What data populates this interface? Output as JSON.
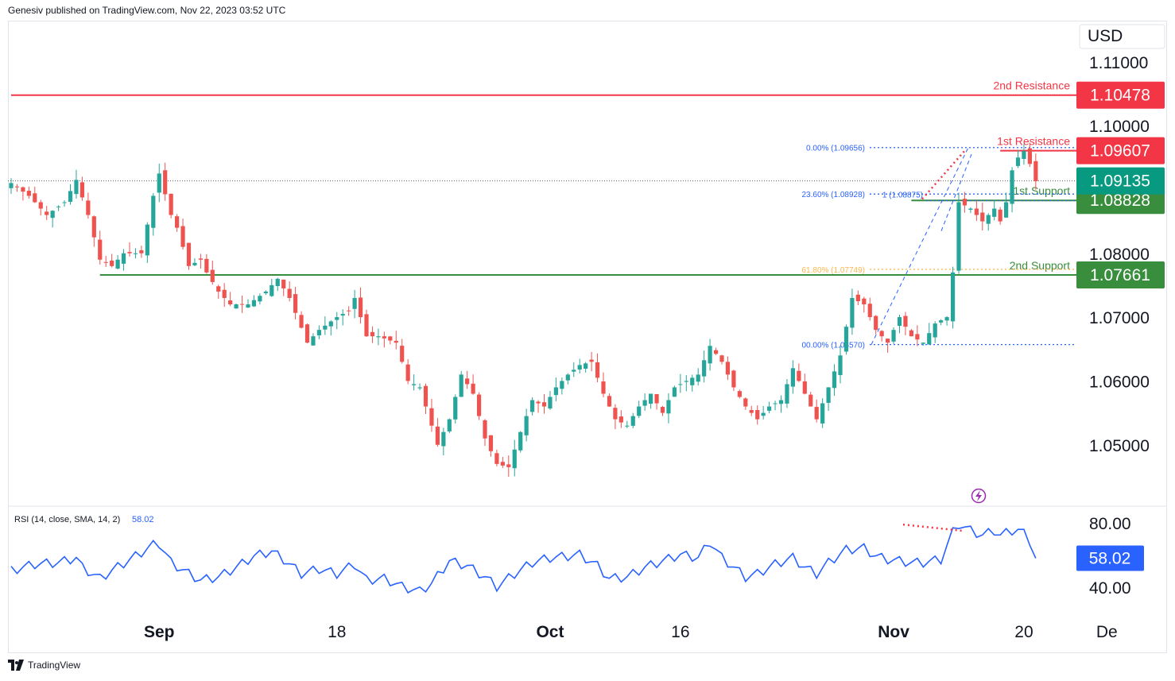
{
  "header": {
    "publisher": "Genesiv published on TradingView.com, Nov 22, 2023 03:52 UTC"
  },
  "footer": {
    "brand": "TradingView"
  },
  "colors": {
    "up": "#26a69a",
    "down": "#ef5350",
    "resistance": "#f23645",
    "support": "#388e3c",
    "fib": "#2962ff",
    "fib_golden": "#ffb74d",
    "rsi": "#2962ff",
    "divergence": "#f23645",
    "last_price_bg": "#089981",
    "axis_text": "#131722"
  },
  "chart_data": [
    {
      "type": "candlestick",
      "title": "",
      "currency": "USD",
      "ylim": [
        1.0425,
        1.1147
      ],
      "y_ticks": [
        "1.11000",
        "1.10000",
        "1.08000",
        "1.07000",
        "1.06000",
        "1.05000"
      ],
      "x_ticks": [
        "Sep",
        "18",
        "Oct",
        "16",
        "Nov",
        "20",
        "Dec"
      ],
      "x_tick_display": [
        "Sep",
        "18",
        "Oct",
        "16",
        "Nov",
        "20",
        "De"
      ],
      "x_tick_bar_index": [
        25,
        55,
        91,
        113,
        149,
        171,
        185
      ],
      "bar_count": 186,
      "last_price": 1.09135,
      "levels": [
        {
          "name": "2nd Resistance",
          "label": "2nd Resistance",
          "value": 1.10478,
          "value_label": "1.10478",
          "kind": "resistance",
          "from_bar": 0
        },
        {
          "name": "1st Resistance",
          "label": "1st Resistance",
          "value": 1.09607,
          "value_label": "1.09607",
          "kind": "resistance",
          "from_bar": 167
        },
        {
          "name": "1st Support",
          "label": "1st Support",
          "value": 1.08828,
          "value_label": "1.08828",
          "kind": "support",
          "from_bar": 152
        },
        {
          "name": "2nd Support",
          "label": "2nd Support",
          "value": 1.07661,
          "value_label": "1.07661",
          "kind": "support",
          "from_bar": 15
        }
      ],
      "last_price_label": "1.09135",
      "fibonacci": [
        {
          "label": "0.00% (1.09656)",
          "value": 1.09656
        },
        {
          "label": "23.60% (1.08928)",
          "value": 1.08928
        },
        {
          "label": "61.80% (1.07749)",
          "value": 1.07749
        },
        {
          "label": "00.00% (1.06570)",
          "value": 1.0657
        }
      ],
      "extension_label": "1 (1.08875)",
      "extension_value": 1.08875,
      "close_path": [
        [
          0,
          1.091
        ],
        [
          3,
          1.089
        ],
        [
          6,
          1.086
        ],
        [
          9,
          1.088
        ],
        [
          11,
          1.0915
        ],
        [
          13,
          1.086
        ],
        [
          15,
          1.079
        ],
        [
          17,
          1.078
        ],
        [
          19,
          1.08
        ],
        [
          22,
          1.08
        ],
        [
          24,
          1.089
        ],
        [
          25,
          1.0925
        ],
        [
          27,
          1.086
        ],
        [
          28,
          1.084
        ],
        [
          30,
          1.078
        ],
        [
          32,
          1.079
        ],
        [
          33,
          1.077
        ],
        [
          35,
          1.074
        ],
        [
          37,
          1.072
        ],
        [
          40,
          1.072
        ],
        [
          43,
          1.074
        ],
        [
          45,
          1.076
        ],
        [
          47,
          1.073
        ],
        [
          50,
          1.066
        ],
        [
          52,
          1.068
        ],
        [
          55,
          1.07
        ],
        [
          57,
          1.071
        ],
        [
          58,
          1.073
        ],
        [
          60,
          1.067
        ],
        [
          62,
          1.067
        ],
        [
          65,
          1.066
        ],
        [
          67,
          1.06
        ],
        [
          69,
          1.059
        ],
        [
          72,
          1.05
        ],
        [
          74,
          1.054
        ],
        [
          76,
          1.061
        ],
        [
          78,
          1.058
        ],
        [
          80,
          1.051
        ],
        [
          82,
          1.047
        ],
        [
          84,
          1.0465
        ],
        [
          86,
          1.052
        ],
        [
          88,
          1.057
        ],
        [
          90,
          1.056
        ],
        [
          92,
          1.059
        ],
        [
          94,
          1.061
        ],
        [
          96,
          1.0625
        ],
        [
          98,
          1.063
        ],
        [
          100,
          1.058
        ],
        [
          102,
          1.054
        ],
        [
          104,
          1.053
        ],
        [
          106,
          1.056
        ],
        [
          108,
          1.058
        ],
        [
          110,
          1.055
        ],
        [
          112,
          1.059
        ],
        [
          114,
          1.06
        ],
        [
          116,
          1.061
        ],
        [
          118,
          1.0655
        ],
        [
          120,
          1.063
        ],
        [
          122,
          1.059
        ],
        [
          124,
          1.056
        ],
        [
          126,
          1.054
        ],
        [
          128,
          1.056
        ],
        [
          130,
          1.057
        ],
        [
          132,
          1.062
        ],
        [
          134,
          1.058
        ],
        [
          136,
          1.054
        ],
        [
          138,
          1.059
        ],
        [
          140,
          1.064
        ],
        [
          142,
          1.073
        ],
        [
          144,
          1.072
        ],
        [
          146,
          1.068
        ],
        [
          148,
          1.066
        ],
        [
          150,
          1.07
        ],
        [
          152,
          1.067
        ],
        [
          154,
          1.066
        ],
        [
          156,
          1.069
        ],
        [
          158,
          1.07
        ],
        [
          159,
          1.077
        ],
        [
          160,
          1.088
        ],
        [
          162,
          1.087
        ],
        [
          164,
          1.085
        ],
        [
          166,
          1.087
        ],
        [
          167,
          1.085
        ],
        [
          168,
          1.088
        ],
        [
          169,
          1.093
        ],
        [
          170,
          1.095
        ],
        [
          171,
          1.096
        ],
        [
          172,
          1.094
        ],
        [
          173,
          1.0913
        ]
      ]
    },
    {
      "type": "line",
      "title": "RSI (14, close, SMA, 14, 2)",
      "legend_label": "RSI (14, close, SMA, 14, 2)",
      "legend_value": "58.02",
      "ylim": [
        28.5,
        88
      ],
      "y_ticks": [
        "80.00",
        "40.00"
      ],
      "last_value": 58.02,
      "last_value_label": "58.02",
      "series": [
        {
          "name": "RSI",
          "path": [
            [
              0,
              50
            ],
            [
              4,
              54
            ],
            [
              8,
              55
            ],
            [
              11,
              58
            ],
            [
              12,
              52
            ],
            [
              15,
              45
            ],
            [
              17,
              50
            ],
            [
              21,
              59
            ],
            [
              24,
              66
            ],
            [
              25,
              67
            ],
            [
              27,
              55
            ],
            [
              30,
              48
            ],
            [
              32,
              44
            ],
            [
              35,
              46
            ],
            [
              38,
              52
            ],
            [
              41,
              59
            ],
            [
              44,
              62
            ],
            [
              46,
              57
            ],
            [
              49,
              48
            ],
            [
              52,
              51
            ],
            [
              55,
              48
            ],
            [
              58,
              54
            ],
            [
              60,
              44
            ],
            [
              63,
              45
            ],
            [
              66,
              40
            ],
            [
              69,
              37
            ],
            [
              71,
              42
            ],
            [
              74,
              56
            ],
            [
              77,
              53
            ],
            [
              80,
              46
            ],
            [
              82,
              40
            ],
            [
              85,
              48
            ],
            [
              88,
              55
            ],
            [
              91,
              58
            ],
            [
              94,
              59
            ],
            [
              96,
              60
            ],
            [
              99,
              53
            ],
            [
              101,
              45
            ],
            [
              104,
              46
            ],
            [
              107,
              52
            ],
            [
              110,
              56
            ],
            [
              113,
              60
            ],
            [
              116,
              58
            ],
            [
              118,
              68
            ],
            [
              120,
              58
            ],
            [
              122,
              52
            ],
            [
              124,
              46
            ],
            [
              126,
              48
            ],
            [
              129,
              54
            ],
            [
              132,
              58
            ],
            [
              134,
              52
            ],
            [
              136,
              48
            ],
            [
              138,
              55
            ],
            [
              141,
              63
            ],
            [
              144,
              64
            ],
            [
              146,
              59
            ],
            [
              148,
              57
            ],
            [
              150,
              56
            ],
            [
              152,
              55
            ],
            [
              154,
              55
            ],
            [
              157,
              57
            ],
            [
              159,
              74
            ],
            [
              160,
              79
            ],
            [
              162,
              75
            ],
            [
              164,
              72
            ],
            [
              166,
              75
            ],
            [
              167,
              72
            ],
            [
              169,
              75
            ],
            [
              171,
              76
            ],
            [
              172,
              66
            ],
            [
              173,
              58
            ]
          ]
        }
      ]
    }
  ]
}
